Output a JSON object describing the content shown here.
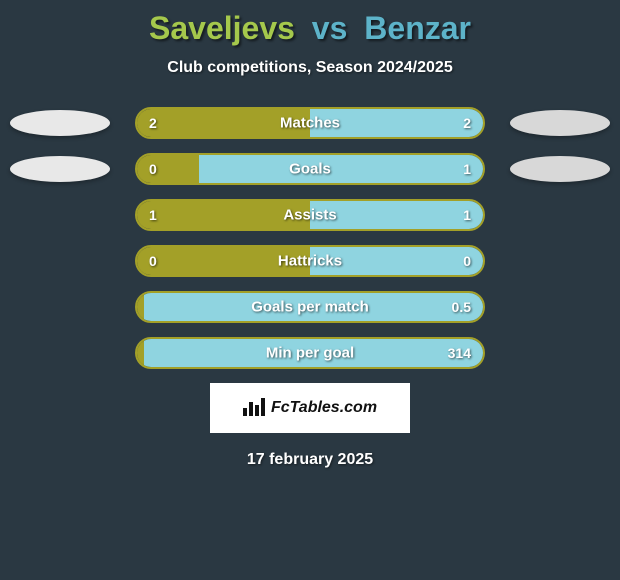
{
  "title": {
    "player1": "Saveljevs",
    "vs": "vs",
    "player2": "Benzar",
    "player1_color": "#a5c84c",
    "vs_color": "#5db3c9",
    "player2_color": "#5db3c9"
  },
  "subtitle": "Club competitions, Season 2024/2025",
  "colors": {
    "left_fill": "#a3a028",
    "right_fill": "#8fd4e0",
    "background": "#2a3842"
  },
  "badges": {
    "left_bg": "#e8e8e8",
    "right_bg": "#d8d8d8"
  },
  "stats": [
    {
      "label": "Matches",
      "left_val": "2",
      "right_val": "2",
      "left_pct": 50,
      "border_color": "#a3a028"
    },
    {
      "label": "Goals",
      "left_val": "0",
      "right_val": "1",
      "left_pct": 18,
      "border_color": "#a3a028"
    },
    {
      "label": "Assists",
      "left_val": "1",
      "right_val": "1",
      "left_pct": 50,
      "border_color": "#a3a028"
    },
    {
      "label": "Hattricks",
      "left_val": "0",
      "right_val": "0",
      "left_pct": 50,
      "border_color": "#a3a028"
    },
    {
      "label": "Goals per match",
      "left_val": "",
      "right_val": "0.5",
      "left_pct": 2,
      "border_color": "#a3a028"
    },
    {
      "label": "Min per goal",
      "left_val": "",
      "right_val": "314",
      "left_pct": 2,
      "border_color": "#a3a028"
    }
  ],
  "footer": {
    "site": "FcTables.com",
    "date": "17 february 2025"
  }
}
